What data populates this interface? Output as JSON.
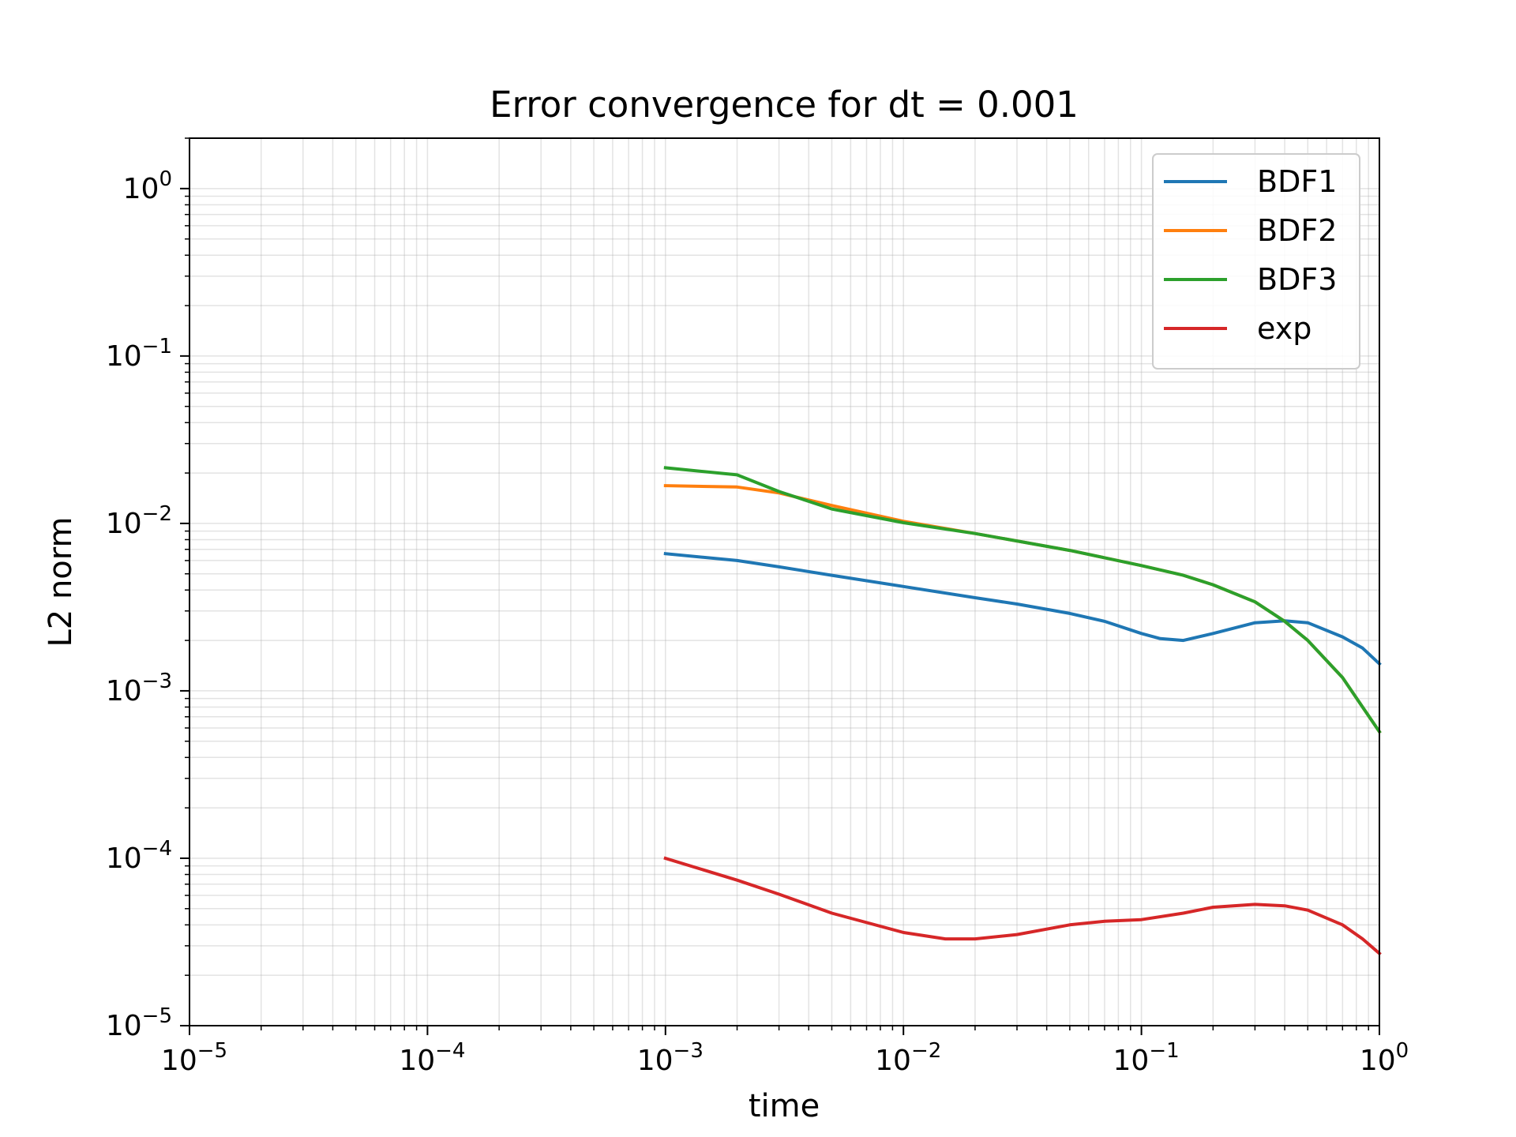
{
  "chart_data": {
    "type": "line",
    "title": "Error convergence for dt = 0.001",
    "xlabel": "time",
    "ylabel": "L2 norm",
    "xscale": "log",
    "yscale": "log",
    "xlim": [
      1e-05,
      1
    ],
    "ylim": [
      1e-05,
      2
    ],
    "grid": true,
    "legend_position": "top-right",
    "x_ticks": [
      {
        "value": 1e-05,
        "base": "10",
        "exp": "−5"
      },
      {
        "value": 0.0001,
        "base": "10",
        "exp": "−4"
      },
      {
        "value": 0.001,
        "base": "10",
        "exp": "−3"
      },
      {
        "value": 0.01,
        "base": "10",
        "exp": "−2"
      },
      {
        "value": 0.1,
        "base": "10",
        "exp": "−1"
      },
      {
        "value": 1,
        "base": "10",
        "exp": "0"
      }
    ],
    "y_ticks": [
      {
        "value": 1e-05,
        "base": "10",
        "exp": "−5"
      },
      {
        "value": 0.0001,
        "base": "10",
        "exp": "−4"
      },
      {
        "value": 0.001,
        "base": "10",
        "exp": "−3"
      },
      {
        "value": 0.01,
        "base": "10",
        "exp": "−2"
      },
      {
        "value": 0.1,
        "base": "10",
        "exp": "−1"
      },
      {
        "value": 1,
        "base": "10",
        "exp": "0"
      }
    ],
    "series": [
      {
        "name": "BDF1",
        "color": "#1f77b4",
        "points": [
          [
            0.001,
            0.0066
          ],
          [
            0.002,
            0.006
          ],
          [
            0.003,
            0.0055
          ],
          [
            0.005,
            0.0049
          ],
          [
            0.01,
            0.0042
          ],
          [
            0.02,
            0.0036
          ],
          [
            0.03,
            0.0033
          ],
          [
            0.05,
            0.0029
          ],
          [
            0.07,
            0.0026
          ],
          [
            0.1,
            0.0022
          ],
          [
            0.12,
            0.00205
          ],
          [
            0.15,
            0.002
          ],
          [
            0.2,
            0.0022
          ],
          [
            0.3,
            0.00255
          ],
          [
            0.4,
            0.00262
          ],
          [
            0.5,
            0.00255
          ],
          [
            0.7,
            0.0021
          ],
          [
            0.85,
            0.0018
          ],
          [
            1.0,
            0.00145
          ]
        ]
      },
      {
        "name": "BDF2",
        "color": "#ff7f0e",
        "points": [
          [
            0.001,
            0.0168
          ],
          [
            0.002,
            0.0165
          ],
          [
            0.003,
            0.0152
          ],
          [
            0.005,
            0.0128
          ],
          [
            0.01,
            0.0103
          ],
          [
            0.02,
            0.0087
          ],
          [
            0.05,
            0.0069
          ],
          [
            0.1,
            0.0056
          ],
          [
            0.15,
            0.0049
          ],
          [
            0.2,
            0.0043
          ],
          [
            0.3,
            0.0034
          ],
          [
            0.4,
            0.0026
          ],
          [
            0.5,
            0.002
          ],
          [
            0.7,
            0.0012
          ],
          [
            0.85,
            0.0008
          ],
          [
            1.0,
            0.00057
          ]
        ]
      },
      {
        "name": "BDF3",
        "color": "#2ca02c",
        "points": [
          [
            0.001,
            0.0215
          ],
          [
            0.002,
            0.0195
          ],
          [
            0.003,
            0.0155
          ],
          [
            0.005,
            0.0122
          ],
          [
            0.01,
            0.0101
          ],
          [
            0.02,
            0.0087
          ],
          [
            0.05,
            0.0069
          ],
          [
            0.1,
            0.0056
          ],
          [
            0.15,
            0.0049
          ],
          [
            0.2,
            0.0043
          ],
          [
            0.3,
            0.0034
          ],
          [
            0.4,
            0.0026
          ],
          [
            0.5,
            0.002
          ],
          [
            0.7,
            0.0012
          ],
          [
            0.85,
            0.0008
          ],
          [
            1.0,
            0.00057
          ]
        ]
      },
      {
        "name": "exp",
        "color": "#d62728",
        "points": [
          [
            0.001,
            0.0001
          ],
          [
            0.002,
            7.4e-05
          ],
          [
            0.003,
            6.1e-05
          ],
          [
            0.005,
            4.7e-05
          ],
          [
            0.01,
            3.6e-05
          ],
          [
            0.015,
            3.3e-05
          ],
          [
            0.02,
            3.3e-05
          ],
          [
            0.03,
            3.5e-05
          ],
          [
            0.05,
            4e-05
          ],
          [
            0.07,
            4.2e-05
          ],
          [
            0.1,
            4.3e-05
          ],
          [
            0.15,
            4.7e-05
          ],
          [
            0.2,
            5.1e-05
          ],
          [
            0.3,
            5.3e-05
          ],
          [
            0.4,
            5.2e-05
          ],
          [
            0.5,
            4.9e-05
          ],
          [
            0.7,
            4e-05
          ],
          [
            0.85,
            3.3e-05
          ],
          [
            1.0,
            2.7e-05
          ]
        ]
      }
    ]
  }
}
